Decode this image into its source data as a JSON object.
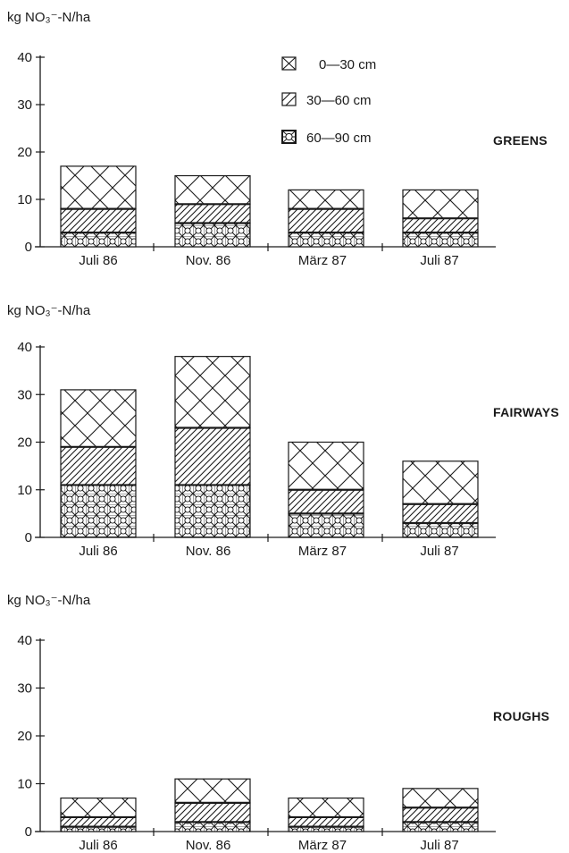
{
  "legend": [
    {
      "key": "layer_0_30",
      "label": "0—30 cm",
      "pattern": "crosshatch"
    },
    {
      "key": "layer_30_60",
      "label": "30—60 cm",
      "pattern": "diagonal"
    },
    {
      "key": "layer_60_90",
      "label": "60—90 cm",
      "pattern": "circles"
    }
  ],
  "colors": {
    "ink": "#1a1a1a",
    "background": "#ffffff"
  },
  "chart_data": [
    {
      "type": "bar",
      "stacked": true,
      "title": "GREENS",
      "ylabel": "kg NO₃⁻-N/ha",
      "ylim": [
        0,
        40
      ],
      "yticks": [
        0,
        10,
        20,
        30,
        40
      ],
      "categories": [
        "Juli 86",
        "Nov. 86",
        "März 87",
        "Juli 87"
      ],
      "series": [
        {
          "name": "60—90 cm",
          "values": [
            3,
            5,
            3,
            3
          ]
        },
        {
          "name": "30—60 cm",
          "values": [
            5,
            4,
            5,
            3
          ]
        },
        {
          "name": "0—30 cm",
          "values": [
            9,
            6,
            4,
            6
          ]
        }
      ]
    },
    {
      "type": "bar",
      "stacked": true,
      "title": "FAIRWAYS",
      "ylabel": "kg NO₃⁻-N/ha",
      "ylim": [
        0,
        40
      ],
      "yticks": [
        0,
        10,
        20,
        30,
        40
      ],
      "categories": [
        "Juli 86",
        "Nov. 86",
        "März 87",
        "Juli 87"
      ],
      "series": [
        {
          "name": "60—90 cm",
          "values": [
            11,
            11,
            5,
            3
          ]
        },
        {
          "name": "30—60 cm",
          "values": [
            8,
            12,
            5,
            4
          ]
        },
        {
          "name": "0—30 cm",
          "values": [
            12,
            15,
            10,
            9
          ]
        }
      ]
    },
    {
      "type": "bar",
      "stacked": true,
      "title": "ROUGHS",
      "ylabel": "kg NO₃⁻-N/ha",
      "ylim": [
        0,
        40
      ],
      "yticks": [
        0,
        10,
        20,
        30,
        40
      ],
      "categories": [
        "Juli 86",
        "Nov. 86",
        "März 87",
        "Juli 87"
      ],
      "series": [
        {
          "name": "60—90 cm",
          "values": [
            1,
            2,
            1,
            2
          ]
        },
        {
          "name": "30—60 cm",
          "values": [
            2,
            4,
            2,
            3
          ]
        },
        {
          "name": "0—30 cm",
          "values": [
            4,
            5,
            4,
            4
          ]
        }
      ]
    }
  ]
}
